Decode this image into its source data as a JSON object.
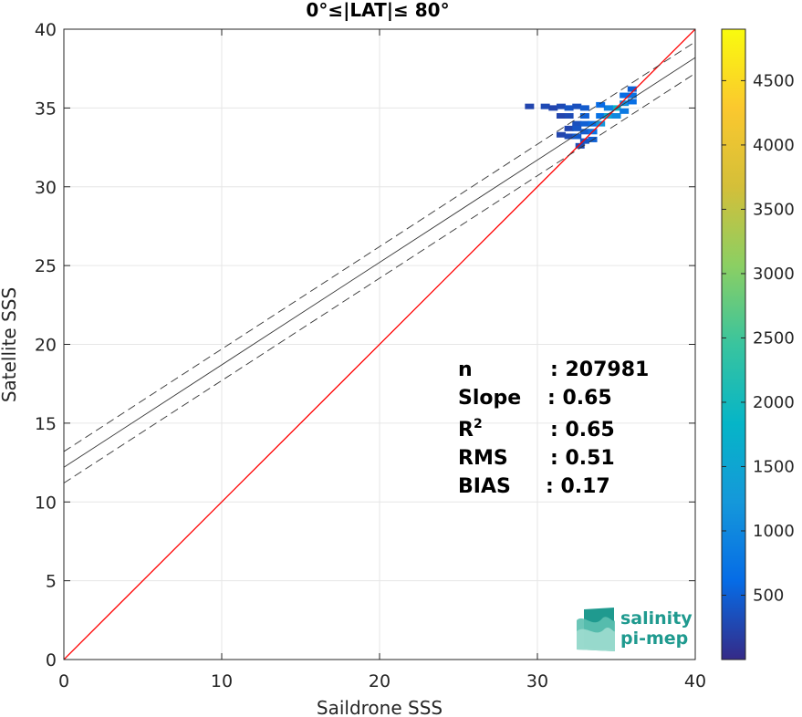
{
  "chart_data": {
    "type": "heatmap",
    "title": "0°≤|LAT|≤ 80°",
    "xlabel": "Saildrone SSS",
    "ylabel": "Satellite SSS",
    "xlim": [
      0,
      40
    ],
    "ylim": [
      0,
      40
    ],
    "xticks": [
      0,
      10,
      20,
      30,
      40
    ],
    "yticks": [
      0,
      5,
      10,
      15,
      20,
      25,
      30,
      35,
      40
    ],
    "grid": true,
    "colorbar": {
      "colormap": "parula",
      "range": [
        0,
        4900
      ],
      "ticks": [
        500,
        1000,
        1500,
        2000,
        2500,
        3000,
        3500,
        4000,
        4500
      ]
    },
    "lines": [
      {
        "role": "one-to-one",
        "slope": 1.0,
        "intercept": 0.0,
        "color": "#ff0000",
        "style": "solid"
      },
      {
        "role": "fit",
        "slope": 0.65,
        "intercept": 12.2,
        "color": "#333333",
        "style": "solid"
      },
      {
        "role": "fit-upper",
        "slope": 0.65,
        "intercept": 13.2,
        "color": "#333333",
        "style": "dashed"
      },
      {
        "role": "fit-lower",
        "slope": 0.65,
        "intercept": 11.2,
        "color": "#333333",
        "style": "dashed"
      }
    ],
    "density_cells": [
      {
        "x": 29.5,
        "y": 35.1,
        "v": 250
      },
      {
        "x": 30.5,
        "y": 35.1,
        "v": 300
      },
      {
        "x": 31.0,
        "y": 35.0,
        "v": 250
      },
      {
        "x": 31.5,
        "y": 35.1,
        "v": 300
      },
      {
        "x": 32.0,
        "y": 35.0,
        "v": 400
      },
      {
        "x": 32.5,
        "y": 35.1,
        "v": 350
      },
      {
        "x": 33.0,
        "y": 35.0,
        "v": 450
      },
      {
        "x": 31.5,
        "y": 34.5,
        "v": 250
      },
      {
        "x": 32.0,
        "y": 34.5,
        "v": 300
      },
      {
        "x": 33.0,
        "y": 34.5,
        "v": 500
      },
      {
        "x": 34.0,
        "y": 34.5,
        "v": 700
      },
      {
        "x": 32.5,
        "y": 34.0,
        "v": 350
      },
      {
        "x": 33.0,
        "y": 34.0,
        "v": 500
      },
      {
        "x": 33.5,
        "y": 34.0,
        "v": 600
      },
      {
        "x": 32.0,
        "y": 33.7,
        "v": 250
      },
      {
        "x": 32.5,
        "y": 33.7,
        "v": 400
      },
      {
        "x": 33.0,
        "y": 33.5,
        "v": 450
      },
      {
        "x": 31.5,
        "y": 33.3,
        "v": 250
      },
      {
        "x": 32.0,
        "y": 33.2,
        "v": 300
      },
      {
        "x": 32.5,
        "y": 33.2,
        "v": 450
      },
      {
        "x": 33.5,
        "y": 33.5,
        "v": 700
      },
      {
        "x": 34.0,
        "y": 34.0,
        "v": 1200
      },
      {
        "x": 34.5,
        "y": 34.5,
        "v": 1500
      },
      {
        "x": 35.0,
        "y": 35.0,
        "v": 1800
      },
      {
        "x": 34.5,
        "y": 35.0,
        "v": 900
      },
      {
        "x": 35.5,
        "y": 35.3,
        "v": 1100
      },
      {
        "x": 35.0,
        "y": 34.5,
        "v": 1000
      },
      {
        "x": 33.0,
        "y": 32.9,
        "v": 400
      },
      {
        "x": 33.5,
        "y": 33.0,
        "v": 500
      },
      {
        "x": 32.7,
        "y": 32.6,
        "v": 300
      },
      {
        "x": 36.0,
        "y": 35.8,
        "v": 700
      },
      {
        "x": 36.0,
        "y": 36.2,
        "v": 500
      },
      {
        "x": 35.5,
        "y": 35.8,
        "v": 600
      },
      {
        "x": 36.0,
        "y": 35.4,
        "v": 650
      },
      {
        "x": 34.0,
        "y": 35.2,
        "v": 600
      },
      {
        "x": 35.5,
        "y": 34.8,
        "v": 800
      }
    ],
    "stats": [
      {
        "label": "n",
        "value": ": 207981"
      },
      {
        "label": "Slope",
        "value": ": 0.65"
      },
      {
        "label": "R",
        "sup": "2",
        "value": ": 0.65"
      },
      {
        "label": "RMS",
        "value": ": 0.51"
      },
      {
        "label": "BIAS",
        "value": ": 0.17"
      }
    ]
  },
  "logo": {
    "line1": "salinity",
    "line2": "pi-mep"
  }
}
